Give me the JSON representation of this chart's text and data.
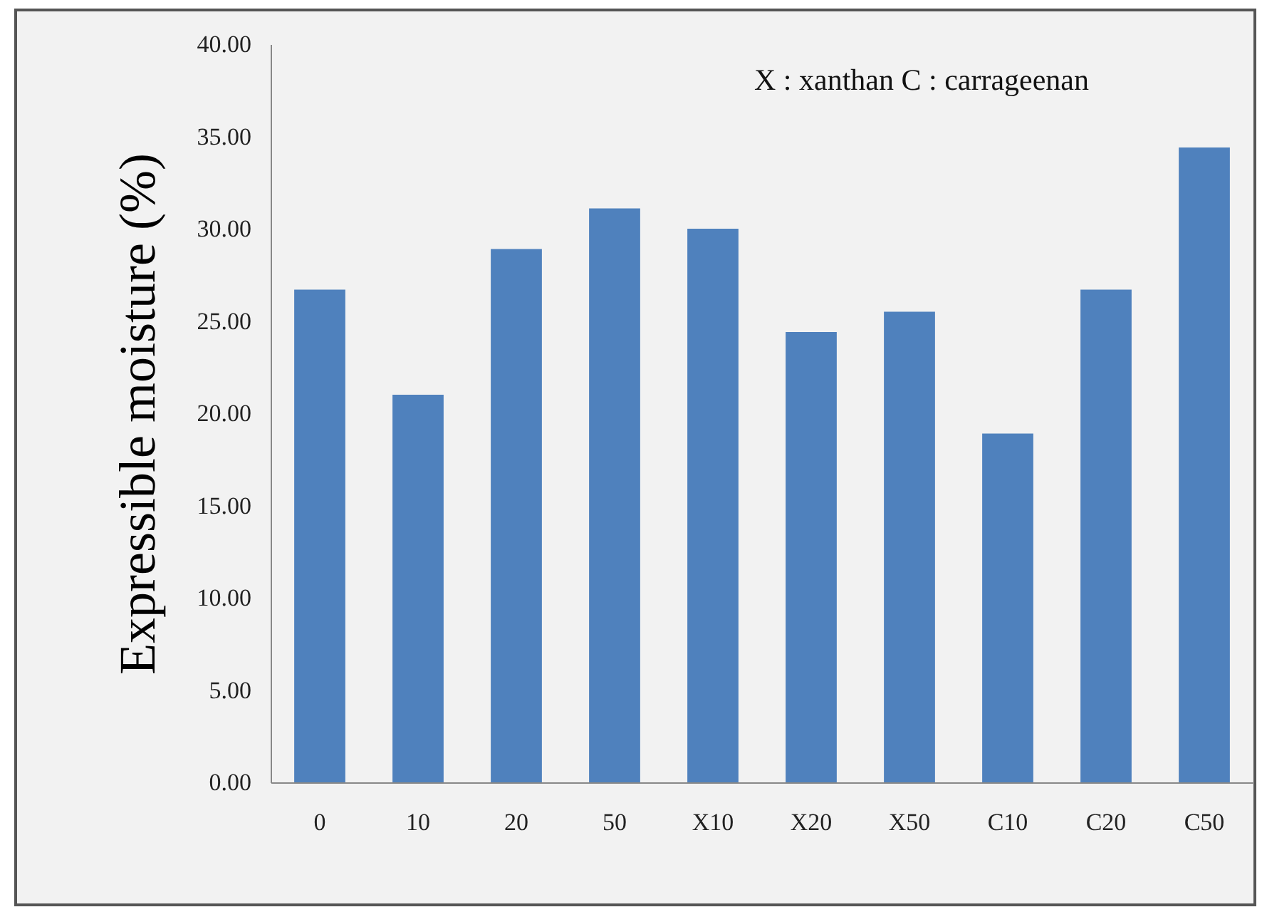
{
  "chart_data": {
    "type": "bar",
    "ylabel": "Expressible   moisture   (%)",
    "categories": [
      "0",
      "10",
      "20",
      "50",
      "X10",
      "X20",
      "X50",
      "C10",
      "C20",
      "C50"
    ],
    "values": [
      26.7,
      21.0,
      28.9,
      31.1,
      30.0,
      24.4,
      25.5,
      18.9,
      26.7,
      34.4
    ],
    "color": "#4f81bd",
    "ylim": [
      0,
      40
    ],
    "yticks": [
      {
        "value": 0,
        "label": "0.00"
      },
      {
        "value": 5,
        "label": "5.00"
      },
      {
        "value": 10,
        "label": "10.00"
      },
      {
        "value": 15,
        "label": "15.00"
      },
      {
        "value": 20,
        "label": "20.00"
      },
      {
        "value": 25,
        "label": "25.00"
      },
      {
        "value": 30,
        "label": "30.00"
      },
      {
        "value": 35,
        "label": "35.00"
      },
      {
        "value": 40,
        "label": "40.00"
      }
    ],
    "grid": false,
    "annotations": [
      "X : xanthan    C : carrageenan"
    ]
  }
}
